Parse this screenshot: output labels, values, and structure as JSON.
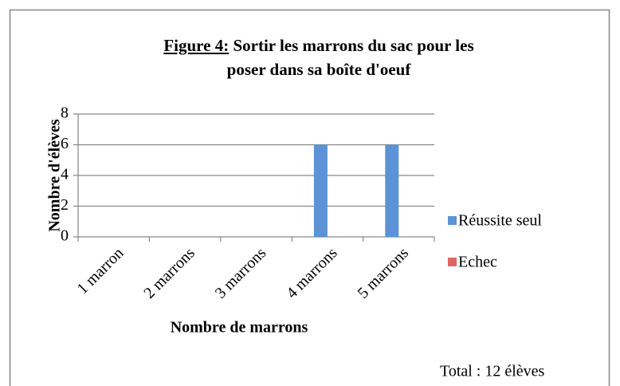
{
  "chart_data": {
    "type": "bar",
    "figure_label": "Figure 4:",
    "title": "Sortir les marrons du sac pour les poser dans sa boîte d'oeuf",
    "xlabel": "Nombre de marrons",
    "ylabel": "Nombre d'élèves",
    "annotation": "Total : 12 élèves",
    "categories": [
      "1 marron",
      "2 marrons",
      "3 marrons",
      "4 marrons",
      "5 marrons"
    ],
    "series": [
      {
        "name": "Réussite seul",
        "color": "#5b93d6",
        "values": [
          0,
          0,
          0,
          6,
          6
        ]
      },
      {
        "name": "Echec",
        "color": "#e06666",
        "values": [
          0,
          0,
          0,
          0,
          0
        ]
      }
    ],
    "ylim": [
      0,
      8
    ],
    "yticks": [
      0,
      2,
      4,
      6,
      8
    ],
    "grid": true,
    "legend": "right"
  }
}
